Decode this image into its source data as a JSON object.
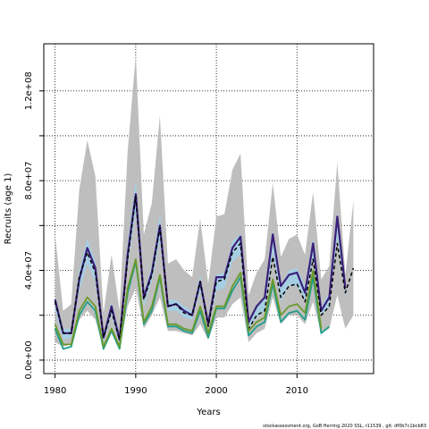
{
  "chart_data": {
    "type": "line",
    "title": "",
    "xlabel": "Years",
    "ylabel": "Recruits (age 1)",
    "xlim": [
      1978.6,
      2019.5
    ],
    "ylim": [
      -6000000,
      141000000
    ],
    "x_ticks": [
      1980,
      1990,
      2000,
      2010
    ],
    "x_tick_labels": [
      "1980",
      "1990",
      "2000",
      "2010"
    ],
    "y_ticks": [
      0,
      40000000,
      80000000,
      120000000
    ],
    "y_tick_labels": [
      "0.0e+00",
      "4.0e+07",
      "8.0e+07",
      "1.2e+08"
    ],
    "y_minor_ticks": [
      20000000,
      60000000,
      100000000
    ],
    "grid": true,
    "caption": "stockassessment.org, GoB Herring 2020 SSL, r11539 , git: df0b7c1bcb83",
    "series": [
      {
        "kind": "band",
        "color": "#bebebe",
        "x": [
          1980,
          1981,
          1982,
          1983,
          1984,
          1985,
          1986,
          1987,
          1988,
          1989,
          1990,
          1991,
          1992,
          1993,
          1994,
          1995,
          1996,
          1997,
          1998,
          1999,
          2000,
          2001,
          2002,
          2003,
          2004,
          2005,
          2006,
          2007,
          2008,
          2009,
          2010,
          2011,
          2012,
          2013,
          2014,
          2015,
          2016,
          2017
        ],
        "lower": [
          8000000,
          6000000,
          7000000,
          18000000,
          22000000,
          18000000,
          5000000,
          12000000,
          5000000,
          24000000,
          32000000,
          14000000,
          20000000,
          28000000,
          13000000,
          13000000,
          12000000,
          11000000,
          16000000,
          9000000,
          19000000,
          19000000,
          25000000,
          28000000,
          8000000,
          12000000,
          14000000,
          28000000,
          16000000,
          20000000,
          20000000,
          16000000,
          26000000,
          12000000,
          14000000,
          29000000,
          14000000,
          20000000
        ],
        "upper": [
          56000000,
          22000000,
          25000000,
          76000000,
          98000000,
          82000000,
          21000000,
          47000000,
          22000000,
          93000000,
          136000000,
          56000000,
          70000000,
          109000000,
          43000000,
          45000000,
          40000000,
          37000000,
          63000000,
          34000000,
          64000000,
          65000000,
          85000000,
          92000000,
          29000000,
          39000000,
          45000000,
          79000000,
          46000000,
          54000000,
          56000000,
          47000000,
          75000000,
          36000000,
          42000000,
          88000000,
          38000000,
          71000000
        ]
      },
      {
        "kind": "band",
        "color": "#a6cee3",
        "x": [
          1980,
          1981,
          1982,
          1983,
          1984,
          1985,
          1986,
          1987,
          1988,
          1989,
          1990,
          1991,
          1992,
          1993,
          1994,
          1995,
          1996,
          1997,
          1998,
          1999,
          2000,
          2001,
          2002,
          2003,
          2004,
          2005,
          2006,
          2007,
          2008,
          2009,
          2010,
          2011,
          2012,
          2013,
          2014,
          2015,
          2016
        ],
        "lower": [
          22000000,
          9000000,
          10000000,
          31000000,
          43000000,
          35000000,
          8000000,
          20000000,
          7000000,
          42000000,
          66000000,
          24000000,
          35000000,
          53000000,
          22000000,
          22000000,
          19000000,
          18000000,
          31000000,
          14000000,
          31000000,
          32000000,
          44000000,
          47000000,
          14000000,
          19000000,
          22000000,
          48000000,
          26000000,
          33000000,
          33000000,
          27000000,
          45000000,
          20000000,
          24000000,
          55000000,
          28000000
        ],
        "upper": [
          28000000,
          14000000,
          14000000,
          40000000,
          54000000,
          44000000,
          12000000,
          26000000,
          11000000,
          52000000,
          80000000,
          30000000,
          42000000,
          65000000,
          27000000,
          27000000,
          24000000,
          22000000,
          38000000,
          18000000,
          38000000,
          39000000,
          53000000,
          56000000,
          18000000,
          24000000,
          28000000,
          58000000,
          33000000,
          40000000,
          41000000,
          33000000,
          55000000,
          24000000,
          30000000,
          66000000,
          35000000
        ]
      },
      {
        "kind": "line",
        "name": "",
        "color": "#3a1f7a",
        "width": 2.2,
        "dash": "",
        "x": [
          1980,
          1981,
          1982,
          1983,
          1984,
          1985,
          1986,
          1987,
          1988,
          1989,
          1990,
          1991,
          1992,
          1993,
          1994,
          1995,
          1996,
          1997,
          1998,
          1999,
          2000,
          2001,
          2002,
          2003,
          2004,
          2005,
          2006,
          2007,
          2008,
          2009,
          2010,
          2011,
          2012,
          2013,
          2014,
          2015,
          2016
        ],
        "y": [
          27000000,
          12000000,
          12000000,
          36000000,
          50000000,
          41000000,
          10000000,
          24000000,
          9000000,
          47000000,
          74000000,
          28000000,
          39000000,
          60000000,
          24000000,
          25000000,
          22000000,
          20000000,
          35000000,
          16000000,
          37000000,
          37000000,
          50000000,
          55000000,
          17000000,
          24000000,
          28000000,
          56000000,
          33000000,
          38000000,
          39000000,
          30000000,
          52000000,
          22000000,
          28000000,
          64000000,
          32000000
        ]
      },
      {
        "kind": "line",
        "name": "",
        "color": "#000000",
        "width": 1.5,
        "dash": "4,3",
        "x": [
          1980,
          1981,
          1982,
          1983,
          1984,
          1985,
          1986,
          1987,
          1988,
          1989,
          1990,
          1991,
          1992,
          1993,
          1994,
          1995,
          1996,
          1997,
          1998,
          1999,
          2000,
          2001,
          2002,
          2003,
          2004,
          2005,
          2006,
          2007,
          2008,
          2009,
          2010,
          2011,
          2012,
          2013,
          2014,
          2015,
          2016,
          2017
        ],
        "y": [
          26000000,
          12000000,
          12000000,
          37000000,
          48000000,
          39000000,
          10000000,
          22000000,
          9000000,
          45000000,
          73000000,
          27000000,
          38000000,
          59000000,
          24000000,
          25000000,
          21000000,
          20000000,
          35000000,
          15000000,
          35000000,
          36000000,
          48000000,
          52000000,
          14000000,
          20000000,
          22000000,
          46000000,
          28000000,
          33000000,
          34000000,
          26000000,
          45000000,
          20000000,
          24000000,
          52000000,
          30000000,
          41000000
        ]
      },
      {
        "kind": "line",
        "name": "",
        "color": "#1f9e89",
        "width": 1.8,
        "dash": "",
        "x": [
          1980,
          1981,
          1982,
          1983,
          1984,
          1985,
          1986,
          1987,
          1988,
          1989,
          1990,
          1991,
          1992,
          1993,
          1994,
          1995,
          1996,
          1997,
          1998,
          1999,
          2000,
          2001,
          2002,
          2003,
          2004,
          2005,
          2006,
          2007,
          2008,
          2009,
          2010,
          2011,
          2012,
          2013,
          2014
        ],
        "y": [
          14000000,
          5000000,
          6000000,
          20000000,
          26000000,
          22000000,
          5000000,
          13000000,
          5000000,
          30000000,
          44000000,
          16000000,
          22000000,
          37000000,
          15000000,
          15000000,
          13000000,
          12000000,
          22000000,
          10000000,
          23000000,
          23000000,
          31000000,
          37000000,
          11000000,
          15000000,
          17000000,
          34000000,
          17000000,
          21000000,
          22000000,
          18000000,
          37000000,
          12000000,
          15000000
        ]
      },
      {
        "kind": "line",
        "name": "",
        "color": "#6a9a2a",
        "width": 1.8,
        "dash": "",
        "x": [
          1980,
          1981,
          1982,
          1983,
          1984,
          1985,
          1986,
          1987,
          1988,
          1989,
          1990,
          1991,
          1992,
          1993,
          1994,
          1995,
          1996,
          1997,
          1998,
          1999,
          2000,
          2001,
          2002,
          2003,
          2004,
          2005,
          2006,
          2007,
          2008,
          2009,
          2010,
          2011,
          2012,
          2013
        ],
        "y": [
          16000000,
          7000000,
          7000000,
          22000000,
          28000000,
          24000000,
          6000000,
          14000000,
          6000000,
          32000000,
          45000000,
          17000000,
          24000000,
          38000000,
          16000000,
          16000000,
          14000000,
          13000000,
          24000000,
          12000000,
          24000000,
          24000000,
          33000000,
          39000000,
          13000000,
          17000000,
          19000000,
          36000000,
          20000000,
          24000000,
          25000000,
          21000000,
          40000000,
          14000000
        ]
      }
    ]
  }
}
